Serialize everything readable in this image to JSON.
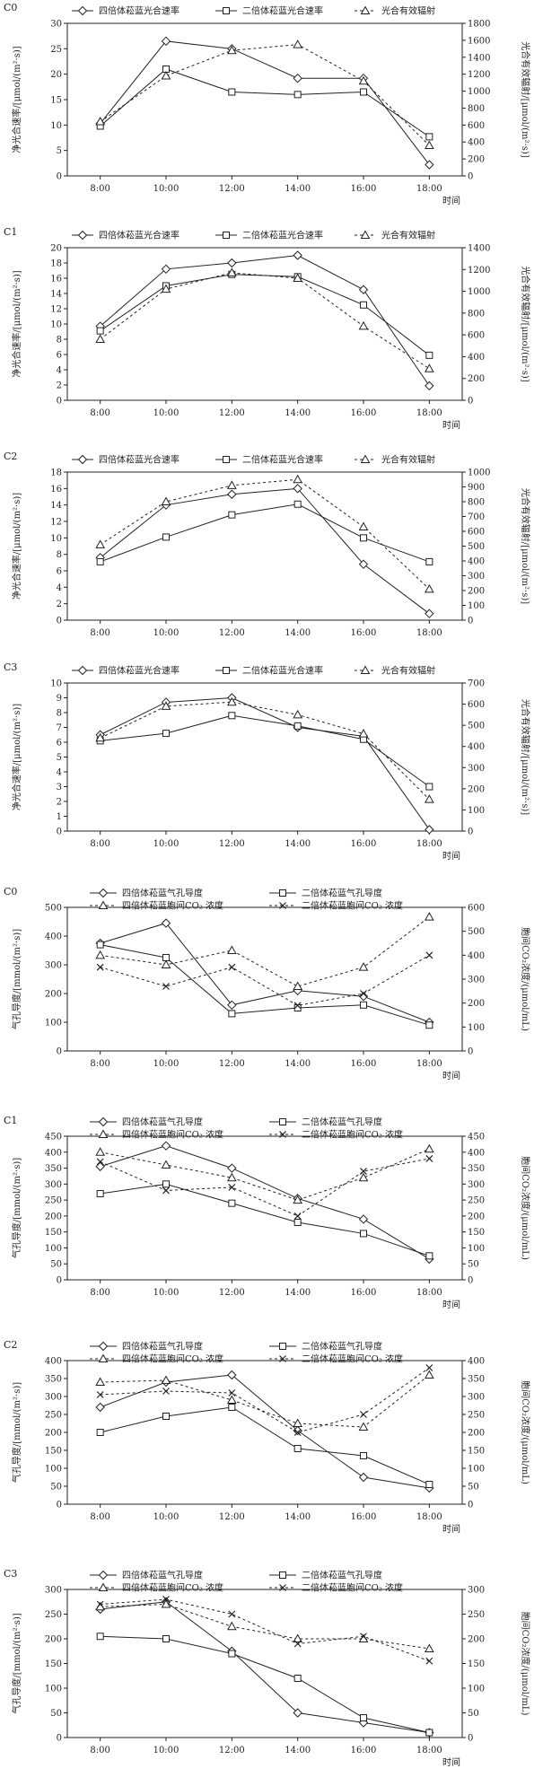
{
  "styles": {
    "tetra": {
      "marker": "diamond",
      "dash": "none"
    },
    "diplo": {
      "marker": "square",
      "dash": "none"
    },
    "rad": {
      "marker": "triangle",
      "dash": "3,3"
    },
    "ci_tetra": {
      "marker": "triangle",
      "dash": "3,3"
    },
    "ci_diplo": {
      "marker": "x",
      "dash": "3,3"
    }
  },
  "chart_data": [
    {
      "type": "line",
      "panel_label": "C0",
      "categories": [
        "8:00",
        "10:00",
        "12:00",
        "14:00",
        "16:00",
        "18:00"
      ],
      "xlabel": "时间",
      "ylabel_left": "净光合速率/[μmol/(m²·s)]",
      "ylabel_right": "光合有效辐射/[μmol/(m²·s)]",
      "ylim_left": [
        0,
        30
      ],
      "ylim_right": [
        0,
        1800
      ],
      "yticks_left": [
        "0",
        "5",
        "10",
        "15",
        "20",
        "25",
        "30"
      ],
      "yticks_right": [
        "0",
        "200",
        "400",
        "600",
        "800",
        "1000",
        "1200",
        "1400",
        "1600",
        "1800"
      ],
      "legend_cols": 3,
      "series": [
        {
          "name": "四倍体菘蓝光合速率",
          "axis": "left",
          "style": "tetra",
          "values": [
            10.3,
            26.5,
            25.0,
            19.2,
            19.2,
            2.2
          ]
        },
        {
          "name": "二倍体菘蓝光合速率",
          "axis": "left",
          "style": "diplo",
          "values": [
            9.8,
            21.0,
            16.5,
            16.0,
            16.5,
            7.7
          ]
        },
        {
          "name": "光合有效辐射",
          "axis": "right",
          "style": "rad",
          "values": [
            640,
            1180,
            1480,
            1550,
            1120,
            360
          ]
        }
      ]
    },
    {
      "type": "line",
      "panel_label": "C1",
      "categories": [
        "8:00",
        "10:00",
        "12:00",
        "14:00",
        "16:00",
        "18:00"
      ],
      "xlabel": "时间",
      "ylabel_left": "净光合速率/[μmol/(m²·s)]",
      "ylabel_right": "光合有效辐射/[μmol/(m²·s)]",
      "ylim_left": [
        0,
        20
      ],
      "ylim_right": [
        0,
        1400
      ],
      "yticks_left": [
        "0",
        "2",
        "4",
        "6",
        "8",
        "10",
        "12",
        "14",
        "16",
        "18",
        "20"
      ],
      "yticks_right": [
        "0",
        "200",
        "400",
        "600",
        "800",
        "1000",
        "1200",
        "1400"
      ],
      "legend_cols": 3,
      "series": [
        {
          "name": "四倍体菘蓝光合速率",
          "axis": "left",
          "style": "tetra",
          "values": [
            9.7,
            17.2,
            18.0,
            19.0,
            14.5,
            1.9
          ]
        },
        {
          "name": "二倍体菘蓝光合速率",
          "axis": "left",
          "style": "diplo",
          "values": [
            9.1,
            15.0,
            16.5,
            16.2,
            12.5,
            5.9
          ]
        },
        {
          "name": "光合有效辐射",
          "axis": "right",
          "style": "rad",
          "values": [
            560,
            1020,
            1170,
            1120,
            680,
            290
          ]
        }
      ]
    },
    {
      "type": "line",
      "panel_label": "C2",
      "categories": [
        "8:00",
        "10:00",
        "12:00",
        "14:00",
        "16:00",
        "18:00"
      ],
      "xlabel": "",
      "ylabel_left": "净光合速率/[μmol/(m²·s)]",
      "ylabel_right": "光合有效辐射/[μmol/(m²·s)]",
      "ylim_left": [
        0,
        18
      ],
      "ylim_right": [
        0,
        1000
      ],
      "yticks_left": [
        "0",
        "2",
        "4",
        "6",
        "8",
        "10",
        "12",
        "14",
        "16",
        "18"
      ],
      "yticks_right": [
        "0",
        "100",
        "200",
        "300",
        "400",
        "500",
        "600",
        "700",
        "800",
        "900",
        "1000"
      ],
      "legend_cols": 3,
      "series": [
        {
          "name": "四倍体菘蓝光合速率",
          "axis": "left",
          "style": "tetra",
          "values": [
            7.6,
            14.0,
            15.3,
            16.0,
            6.8,
            0.8
          ]
        },
        {
          "name": "二倍体菘蓝光合速率",
          "axis": "left",
          "style": "diplo",
          "values": [
            7.1,
            10.1,
            12.8,
            14.1,
            10.0,
            7.1
          ]
        },
        {
          "name": "光合有效辐射",
          "axis": "right",
          "style": "rad",
          "values": [
            510,
            800,
            910,
            950,
            630,
            210
          ]
        }
      ]
    },
    {
      "type": "line",
      "panel_label": "C3",
      "categories": [
        "8:00",
        "10:00",
        "12:00",
        "14:00",
        "16:00",
        "18:00"
      ],
      "xlabel": "时间",
      "ylabel_left": "净光合速率/[μmol/(m²·s)]",
      "ylabel_right": "光合有效辐射/[μmol/(m²·s)]",
      "ylim_left": [
        0,
        10
      ],
      "ylim_right": [
        0,
        700
      ],
      "yticks_left": [
        "0",
        "1",
        "2",
        "3",
        "4",
        "5",
        "6",
        "7",
        "8",
        "9",
        "10"
      ],
      "yticks_right": [
        "0",
        "100",
        "200",
        "300",
        "400",
        "500",
        "600",
        "700"
      ],
      "legend_cols": 3,
      "series": [
        {
          "name": "四倍体菘蓝光合速率",
          "axis": "left",
          "style": "tetra",
          "values": [
            6.5,
            8.7,
            9.0,
            7.0,
            6.4,
            0.1
          ]
        },
        {
          "name": "二倍体菘蓝光合速率",
          "axis": "left",
          "style": "diplo",
          "values": [
            6.1,
            6.6,
            7.8,
            7.1,
            6.2,
            3.0
          ]
        },
        {
          "name": "光合有效辐射",
          "axis": "right",
          "style": "rad",
          "values": [
            440,
            590,
            610,
            550,
            460,
            150
          ]
        }
      ]
    },
    {
      "type": "line",
      "panel_label": "C0",
      "categories": [
        "8:00",
        "10:00",
        "12:00",
        "14:00",
        "16:00",
        "18:00"
      ],
      "xlabel": "时间",
      "ylabel_left": "气孔导度/[mmol/(m²·s)]",
      "ylabel_right": "胞间CO₂浓度/(μmol/mL)",
      "ylim_left": [
        0,
        500
      ],
      "ylim_right": [
        0,
        600
      ],
      "yticks_left": [
        "0",
        "100",
        "200",
        "300",
        "400",
        "500"
      ],
      "yticks_right": [
        "0",
        "100",
        "200",
        "300",
        "400",
        "500",
        "600"
      ],
      "legend_cols": 2,
      "series": [
        {
          "name": "四倍体菘蓝气孔导度",
          "axis": "left",
          "style": "tetra",
          "values": [
            375,
            445,
            160,
            210,
            190,
            100
          ]
        },
        {
          "name": "二倍体菘蓝气孔导度",
          "axis": "left",
          "style": "diplo",
          "values": [
            370,
            325,
            130,
            150,
            160,
            90
          ]
        },
        {
          "name": "四倍体菘蓝胞间CO₂ 浓度",
          "axis": "right",
          "style": "ci_tetra",
          "values": [
            400,
            360,
            420,
            270,
            350,
            560
          ]
        },
        {
          "name": "二倍体菘蓝胞间CO₂ 浓度",
          "axis": "right",
          "style": "ci_diplo",
          "values": [
            350,
            270,
            350,
            190,
            240,
            400
          ]
        }
      ]
    },
    {
      "type": "line",
      "panel_label": "C1",
      "categories": [
        "8:00",
        "10:00",
        "12:00",
        "14:00",
        "16:00",
        "18:00"
      ],
      "xlabel": "时间",
      "ylabel_left": "气孔导度/[mmol/(m²·s)]",
      "ylabel_right": "胞间CO₂浓度/(μmol/mL)",
      "ylim_left": [
        0,
        450
      ],
      "ylim_right": [
        0,
        450
      ],
      "yticks_left": [
        "0",
        "50",
        "100",
        "150",
        "200",
        "250",
        "300",
        "350",
        "400",
        "450"
      ],
      "yticks_right": [
        "0",
        "50",
        "100",
        "150",
        "200",
        "250",
        "300",
        "350",
        "400",
        "450"
      ],
      "legend_cols": 2,
      "series": [
        {
          "name": "四倍体菘蓝气孔导度",
          "axis": "left",
          "style": "tetra",
          "values": [
            355,
            420,
            350,
            255,
            190,
            65
          ]
        },
        {
          "name": "二倍体菘蓝气孔导度",
          "axis": "left",
          "style": "diplo",
          "values": [
            270,
            300,
            240,
            180,
            145,
            75
          ]
        },
        {
          "name": "四倍体菘蓝胞间CO₂ 浓度",
          "axis": "right",
          "style": "ci_tetra",
          "values": [
            400,
            360,
            320,
            250,
            320,
            410
          ]
        },
        {
          "name": "二倍体菘蓝胞间CO₂ 浓度",
          "axis": "right",
          "style": "ci_diplo",
          "values": [
            370,
            280,
            290,
            200,
            340,
            380
          ]
        }
      ]
    },
    {
      "type": "line",
      "panel_label": "C2",
      "categories": [
        "8:00",
        "10:00",
        "12:00",
        "14:00",
        "16:00",
        "18:00"
      ],
      "xlabel": "时间",
      "ylabel_left": "气孔导度/[mmol/(m²·s)]",
      "ylabel_right": "胞间CO₂浓度/(μmol/mL)",
      "ylim_left": [
        0,
        400
      ],
      "ylim_right": [
        0,
        400
      ],
      "yticks_left": [
        "0",
        "50",
        "100",
        "150",
        "200",
        "250",
        "300",
        "350",
        "400"
      ],
      "yticks_right": [
        "0",
        "50",
        "100",
        "150",
        "200",
        "250",
        "300",
        "350",
        "400"
      ],
      "legend_cols": 2,
      "series": [
        {
          "name": "四倍体菘蓝气孔导度",
          "axis": "left",
          "style": "tetra",
          "values": [
            270,
            340,
            360,
            205,
            75,
            45
          ]
        },
        {
          "name": "二倍体菘蓝气孔导度",
          "axis": "left",
          "style": "diplo",
          "values": [
            200,
            245,
            270,
            155,
            135,
            55
          ]
        },
        {
          "name": "四倍体菘蓝胞间CO₂ 浓度",
          "axis": "right",
          "style": "ci_tetra",
          "values": [
            340,
            345,
            290,
            225,
            215,
            360
          ]
        },
        {
          "name": "二倍体菘蓝胞间CO₂ 浓度",
          "axis": "right",
          "style": "ci_diplo",
          "values": [
            305,
            315,
            310,
            200,
            250,
            380
          ]
        }
      ]
    },
    {
      "type": "line",
      "panel_label": "C3",
      "categories": [
        "8:00",
        "10:00",
        "12:00",
        "14:00",
        "16:00",
        "18:00"
      ],
      "xlabel": "时间",
      "ylabel_left": "气孔导度/[mmol/(m²·s)]",
      "ylabel_right": "胞间CO₂浓度/(μmol/mL)",
      "ylim_left": [
        0,
        300
      ],
      "ylim_right": [
        0,
        300
      ],
      "yticks_left": [
        "0",
        "50",
        "100",
        "150",
        "200",
        "250",
        "300"
      ],
      "yticks_right": [
        "0",
        "50",
        "100",
        "150",
        "200",
        "250",
        "300"
      ],
      "legend_cols": 2,
      "series": [
        {
          "name": "四倍体菘蓝气孔导度",
          "axis": "left",
          "style": "tetra",
          "values": [
            260,
            275,
            175,
            50,
            30,
            10
          ]
        },
        {
          "name": "二倍体菘蓝气孔导度",
          "axis": "left",
          "style": "diplo",
          "values": [
            205,
            200,
            170,
            120,
            40,
            10
          ]
        },
        {
          "name": "四倍体菘蓝胞间CO₂ 浓度",
          "axis": "right",
          "style": "ci_tetra",
          "values": [
            265,
            270,
            225,
            200,
            200,
            180
          ]
        },
        {
          "name": "二倍体菘蓝胞间CO₂ 浓度",
          "axis": "right",
          "style": "ci_diplo",
          "values": [
            270,
            280,
            250,
            190,
            205,
            155
          ]
        }
      ]
    }
  ]
}
